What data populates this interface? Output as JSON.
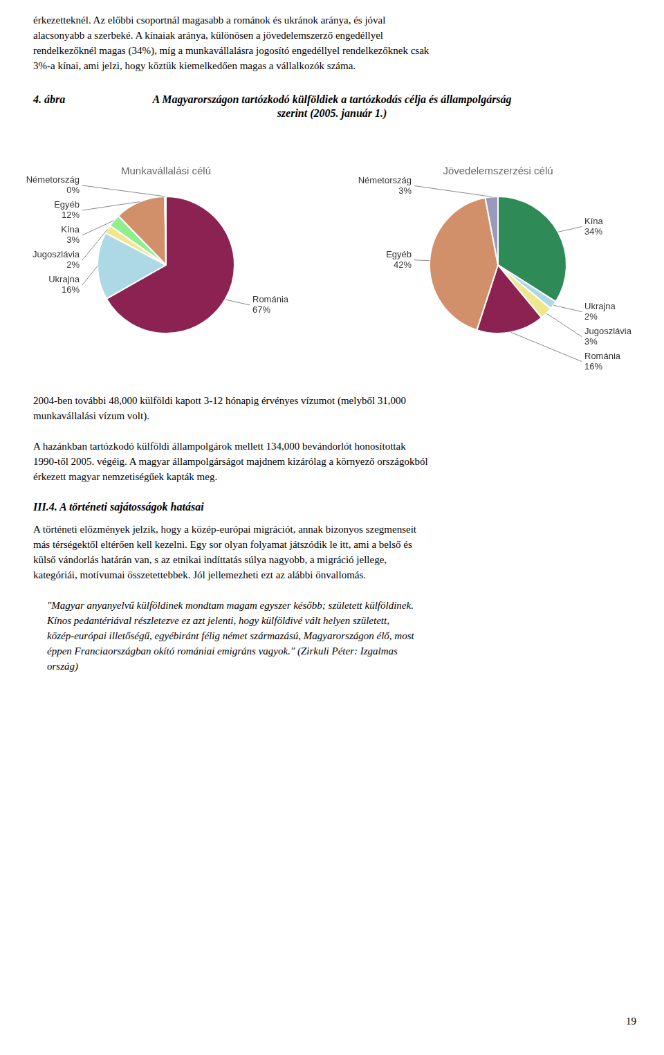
{
  "text_before": [
    "érkezetteknél. Az előbbi csoportnál magasabb a románok és ukránok aránya, és jóval",
    "alacsonyabb a szerbeké. A kínaiak aránya, különösen a jövedelemszerző engedéllyel",
    "rendelkezőknél magas (34%), míg a munkavállalásra jogosító engedéllyel rendelkezőknek csak",
    "3%-a kínai, ami jelzi, hogy köztük kiemelkedően magas a vállalkozók száma."
  ],
  "figure_label": "4. ábra",
  "title": [
    "A Magyarországon tartózkodó külföldiek a tartózkodás célja és állampolgárság",
    "szerint (2005. január 1.)"
  ],
  "chart_data": [
    {
      "type": "pie",
      "title": "Munkavállalási célú",
      "categories": [
        "Románia",
        "Ukrajna",
        "Jugoszlávia",
        "Kína",
        "Egyéb",
        "Németország"
      ],
      "values": [
        67,
        16,
        2,
        3,
        12,
        0.3
      ],
      "value_labels": [
        "67%",
        "16%",
        "2%",
        "3%",
        "12%",
        "0%"
      ],
      "colors": [
        "#8B2252",
        "#ADD8E6",
        "#F0E68C",
        "#90EE90",
        "#D2906A",
        "#9999BB"
      ],
      "data_labels": true
    },
    {
      "type": "pie",
      "title": "Jövedelemszerzési célú",
      "categories": [
        "Kína",
        "Ukrajna",
        "Jugoszlávia",
        "Románia",
        "Egyéb",
        "Németország"
      ],
      "values": [
        34,
        2,
        3,
        16,
        42,
        3
      ],
      "value_labels": [
        "34%",
        "2%",
        "3%",
        "16%",
        "42%",
        "3%"
      ],
      "colors": [
        "#2E8B57",
        "#ADD8E6",
        "#F0E68C",
        "#8B2252",
        "#D2906A",
        "#9999BB"
      ],
      "data_labels": true
    }
  ],
  "text_after": [
    [
      "2004-ben további 48,000 külföldi kapott 3-12 hónapig érvényes vízumot (melyből 31,000",
      "munkavállalási vízum volt)."
    ],
    [
      "A hazánkban tartózkodó külföldi állampolgárok mellett 134,000 bevándorlót honosítottak",
      "1990-től 2005. végéig. A magyar állampolgárságot majdnem kizárólag a környező országokból",
      "érkezett magyar nemzetiségűek kapták meg."
    ]
  ],
  "section_title": "III.4.  A történeti sajátosságok hatásai",
  "body_text": [
    "A történeti előzmények jelzik, hogy a közép-európai migrációt, annak bizonyos szegmenseit",
    "más térségektől eltérően kell kezelni. Egy sor olyan folyamat játszódik le itt, ami a belső és",
    "külső vándorlás határán van, s az etnikai indíttatás súlya nagyobb, a migráció jellege,",
    "kategóriái, motívumai összetettebbek. Jól jellemezheti ezt az alábbi önvallomás."
  ],
  "quote_text": [
    "\"Magyar anyanyelvű külföldinek mondtam magam egyszer később; született külföldinek.",
    "Kínos pedantériával részletezve ez azt jelenti, hogy külföldivé vált helyen született,",
    "közép-európai illetőségű, egyébiránt félig német származású, Magyarországon élő, most",
    "éppen Franciaországban okító romániai emigráns vagyok.\" (Zirkuli Péter: Izgalmas",
    "ország)"
  ],
  "page_number": "19"
}
